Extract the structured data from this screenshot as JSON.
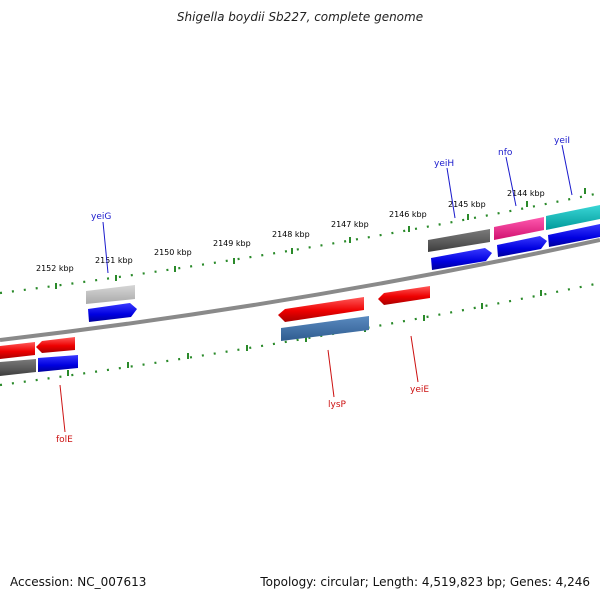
{
  "title": "Shigella boydii Sb227, complete genome",
  "footer": {
    "accession": "Accession: NC_007613",
    "topology": "Topology: circular; Length: 4,519,823 bp; Genes: 4,246"
  },
  "scale_labels": [
    "2152 kbp",
    "2151 kbp",
    "2150 kbp",
    "2149 kbp",
    "2148 kbp",
    "2147 kbp",
    "2146 kbp",
    "2145 kbp",
    "2144 kbp"
  ],
  "genes": {
    "forward": [
      "yeiG",
      "yeiH",
      "nfo",
      "yeiI"
    ],
    "reverse": [
      "folE",
      "lysP",
      "yeiE"
    ]
  },
  "colors": {
    "forward_label": "#1a1acc",
    "reverse_label": "#cc1111",
    "tick": "#2a8a2a",
    "backbone": "#7a7a7a"
  }
}
